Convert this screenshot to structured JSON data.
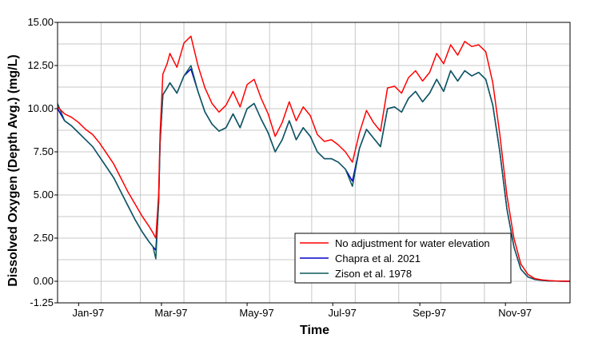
{
  "chart_data": {
    "type": "line",
    "title": "",
    "xlabel": "Time",
    "ylabel": "Dissolved Oxygen (Depth Avg.) (mg/L)",
    "ylim": [
      -1.25,
      15.0
    ],
    "xlim": [
      0,
      365
    ],
    "yticks": [
      -1.25,
      0.0,
      2.5,
      5.0,
      7.5,
      10.0,
      12.5,
      15.0
    ],
    "ytick_labels": [
      "-1.25",
      "0.00",
      "2.50",
      "5.00",
      "7.50",
      "10.00",
      "12.50",
      "15.00"
    ],
    "x_ticks": [
      {
        "label": "Jan-97",
        "day": 15
      },
      {
        "label": "Mar-97",
        "day": 74
      },
      {
        "label": "May-97",
        "day": 135
      },
      {
        "label": "Jul-97",
        "day": 196
      },
      {
        "label": "Sep-97",
        "day": 258
      },
      {
        "label": "Nov-97",
        "day": 319
      }
    ],
    "grid": true,
    "legend_position": "bottom-right",
    "series": [
      {
        "name": "No adjustment for water elevation",
        "color": "#ff0000",
        "x": [
          0,
          5,
          10,
          15,
          20,
          25,
          30,
          35,
          40,
          45,
          50,
          55,
          60,
          65,
          68,
          70,
          72,
          73,
          75,
          78,
          80,
          85,
          90,
          95,
          100,
          105,
          110,
          115,
          120,
          125,
          130,
          135,
          140,
          145,
          150,
          155,
          160,
          165,
          170,
          175,
          180,
          185,
          190,
          195,
          200,
          205,
          210,
          215,
          220,
          225,
          230,
          235,
          240,
          245,
          250,
          255,
          260,
          265,
          270,
          275,
          280,
          285,
          290,
          295,
          300,
          305,
          310,
          315,
          320,
          325,
          330,
          335,
          340,
          345,
          350,
          355,
          360,
          365
        ],
        "y": [
          10.1,
          9.7,
          9.5,
          9.2,
          8.8,
          8.5,
          8.0,
          7.4,
          6.8,
          6.0,
          5.2,
          4.5,
          3.8,
          3.2,
          2.8,
          2.5,
          5.0,
          8.5,
          12.0,
          12.6,
          13.2,
          12.4,
          13.8,
          14.2,
          12.5,
          11.2,
          10.3,
          9.8,
          10.2,
          11.0,
          10.1,
          11.4,
          11.7,
          10.6,
          9.7,
          8.4,
          9.2,
          10.4,
          9.3,
          10.1,
          9.6,
          8.5,
          8.1,
          8.2,
          7.9,
          7.5,
          6.9,
          8.6,
          9.9,
          9.2,
          8.7,
          11.2,
          11.3,
          10.9,
          11.8,
          12.2,
          11.6,
          12.1,
          13.2,
          12.6,
          13.7,
          13.1,
          13.9,
          13.6,
          13.7,
          13.3,
          11.5,
          8.5,
          5.0,
          2.5,
          1.0,
          0.4,
          0.15,
          0.08,
          0.04,
          0.02,
          0.01,
          0.0
        ]
      },
      {
        "name": "Chapra et al. 2021",
        "color": "#0000cc",
        "x": [
          0,
          5,
          10,
          15,
          20,
          25,
          30,
          35,
          40,
          45,
          50,
          55,
          60,
          65,
          68,
          70,
          72,
          73,
          75,
          78,
          80,
          85,
          90,
          95,
          100,
          105,
          110,
          115,
          120,
          125,
          130,
          135,
          140,
          145,
          150,
          155,
          160,
          165,
          170,
          175,
          180,
          185,
          190,
          195,
          200,
          205,
          210,
          215,
          220,
          225,
          230,
          235,
          240,
          245,
          250,
          255,
          260,
          265,
          270,
          275,
          280,
          285,
          290,
          295,
          300,
          305,
          310,
          315,
          320,
          325,
          330,
          335,
          340,
          345,
          350,
          355,
          360,
          365
        ],
        "y": [
          10.0,
          9.3,
          9.0,
          8.6,
          8.2,
          7.8,
          7.2,
          6.6,
          6.0,
          5.2,
          4.4,
          3.6,
          2.9,
          2.3,
          2.0,
          1.8,
          4.5,
          8.0,
          10.8,
          11.2,
          11.5,
          10.9,
          11.9,
          12.3,
          11.0,
          9.8,
          9.1,
          8.7,
          8.9,
          9.7,
          8.9,
          10.0,
          10.3,
          9.4,
          8.6,
          7.5,
          8.2,
          9.3,
          8.2,
          8.9,
          8.4,
          7.5,
          7.1,
          7.1,
          6.9,
          6.5,
          5.8,
          7.7,
          8.8,
          8.3,
          7.8,
          10.0,
          10.1,
          9.8,
          10.6,
          11.0,
          10.4,
          10.9,
          11.7,
          11.0,
          12.2,
          11.6,
          12.2,
          11.9,
          12.1,
          11.7,
          10.2,
          7.5,
          4.2,
          2.0,
          0.7,
          0.25,
          0.1,
          0.05,
          0.02,
          0.01,
          0.0,
          0.0
        ]
      },
      {
        "name": "Zison et al. 1978",
        "color": "#0d5a5a",
        "x": [
          0,
          5,
          10,
          15,
          20,
          25,
          30,
          35,
          40,
          45,
          50,
          55,
          60,
          65,
          68,
          70,
          72,
          73,
          75,
          78,
          80,
          85,
          90,
          95,
          100,
          105,
          110,
          115,
          120,
          125,
          130,
          135,
          140,
          145,
          150,
          155,
          160,
          165,
          170,
          175,
          180,
          185,
          190,
          195,
          200,
          205,
          210,
          215,
          220,
          225,
          230,
          235,
          240,
          245,
          250,
          255,
          260,
          265,
          270,
          275,
          280,
          285,
          290,
          295,
          300,
          305,
          310,
          315,
          320,
          325,
          330,
          335,
          340,
          345,
          350,
          355,
          360,
          365
        ],
        "y": [
          10.3,
          9.3,
          9.0,
          8.6,
          8.2,
          7.8,
          7.2,
          6.6,
          6.0,
          5.2,
          4.4,
          3.6,
          2.9,
          2.3,
          2.0,
          1.3,
          4.5,
          8.0,
          10.8,
          11.2,
          11.5,
          10.9,
          11.9,
          12.5,
          11.0,
          9.8,
          9.1,
          8.7,
          8.9,
          9.7,
          8.9,
          10.0,
          10.3,
          9.4,
          8.6,
          7.5,
          8.2,
          9.3,
          8.2,
          8.9,
          8.4,
          7.5,
          7.1,
          7.1,
          6.9,
          6.5,
          5.5,
          7.7,
          8.8,
          8.3,
          7.8,
          10.0,
          10.1,
          9.8,
          10.6,
          11.0,
          10.4,
          10.9,
          11.7,
          11.0,
          12.2,
          11.6,
          12.2,
          11.9,
          12.1,
          11.7,
          10.2,
          7.5,
          4.2,
          2.0,
          0.7,
          0.25,
          0.1,
          0.05,
          0.02,
          0.01,
          0.0,
          0.0
        ]
      }
    ]
  }
}
